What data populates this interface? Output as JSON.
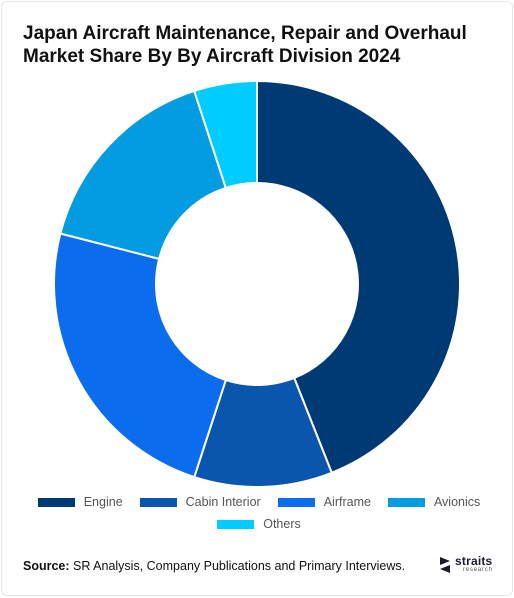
{
  "chart_data": {
    "type": "pie",
    "title": "Japan Aircraft Maintenance, Repair and Overhaul Market Share By By Aircraft Division 2024",
    "categories": [
      "Engine",
      "Cabin Interior",
      "Airframe",
      "Avionics",
      "Others"
    ],
    "values": [
      44,
      11,
      24,
      16,
      5
    ],
    "unit": "%",
    "colors": [
      "#003a75",
      "#0a56ae",
      "#0b6ded",
      "#049ce0",
      "#00cdff"
    ],
    "donut": true,
    "legend_position": "bottom"
  },
  "footer": {
    "source_label": "Source:",
    "source_text": " SR Analysis, Company Publications and Primary Interviews."
  },
  "logo": {
    "name": "straits",
    "sub": "research"
  }
}
